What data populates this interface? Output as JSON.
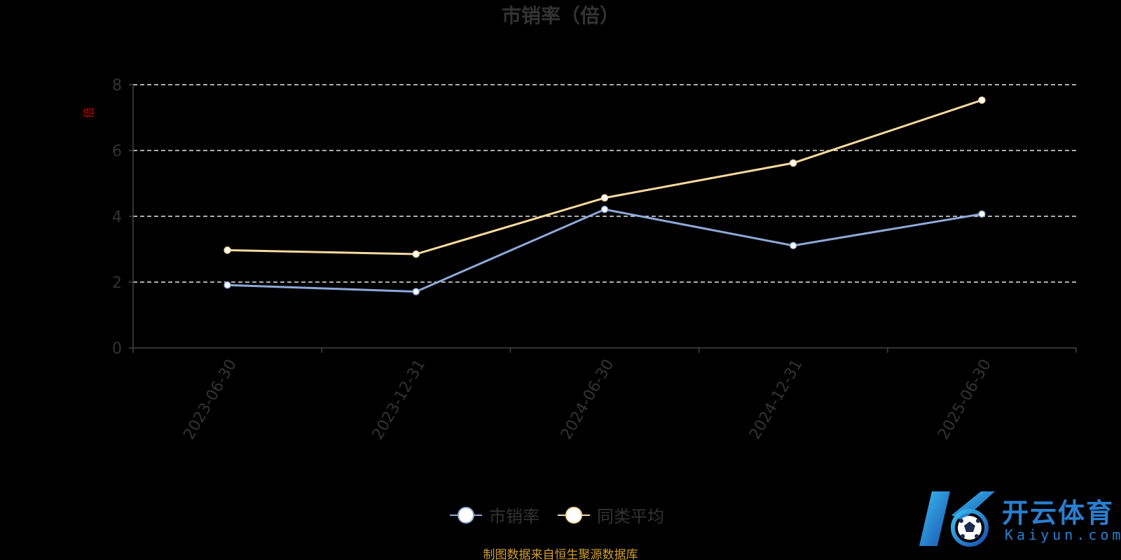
{
  "chart_data": {
    "type": "line",
    "title": "市销率（倍）",
    "ylabel": "倍",
    "categories": [
      "2023-06-30",
      "2023-12-31",
      "2024-06-30",
      "2024-12-31",
      "2025-06-30"
    ],
    "ylim": [
      0,
      8
    ],
    "yticks": [
      "0",
      "2",
      "4",
      "6",
      "8"
    ],
    "grid": true,
    "legend_position": "bottom",
    "series": [
      {
        "name": "市销率",
        "color": "#8fa9d8",
        "values": [
          1.91,
          1.71,
          4.21,
          3.11,
          4.07
        ]
      },
      {
        "name": "同类平均",
        "color": "#f7d9a0",
        "values": [
          2.97,
          2.85,
          4.56,
          5.62,
          7.53
        ]
      }
    ]
  },
  "source_note": "制图数据来自恒生聚源数据库",
  "watermark": {
    "brand_cn": "开云体育",
    "brand_en": "Kaiyun.com",
    "icon": "k-soccer-logo"
  }
}
